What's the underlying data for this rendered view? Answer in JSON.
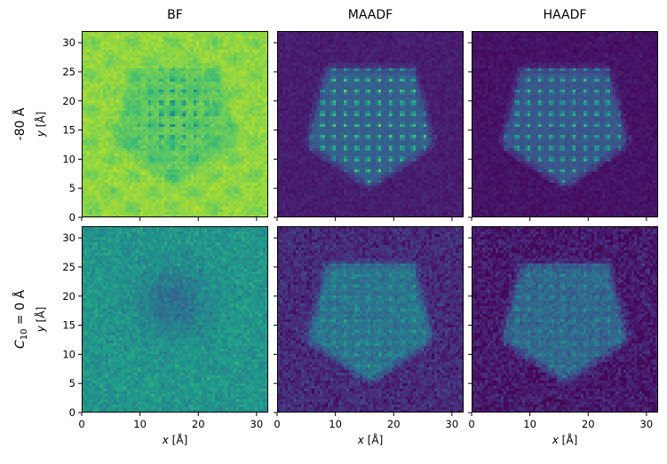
{
  "chart_data": {
    "type": "heatmap",
    "layout": "2x3 grid",
    "columns": [
      "BF",
      "MAADF",
      "HAADF"
    ],
    "rows": [
      {
        "label_prefix": "",
        "label_var": "",
        "label_sub": "",
        "label_rest": "-80 Å"
      },
      {
        "label_prefix": "",
        "label_var": "C",
        "label_sub": "10",
        "label_rest": " = 0 Å"
      }
    ],
    "xlabel_var": "x",
    "xlabel_unit": " [Å]",
    "ylabel_var": "y",
    "ylabel_unit": " [Å]",
    "xlim": [
      0,
      32
    ],
    "ylim": [
      0,
      32
    ],
    "xticks": [
      0,
      10,
      20,
      30
    ],
    "yticks": [
      0,
      5,
      10,
      15,
      20,
      25,
      30
    ],
    "colormap": "viridis",
    "panels": [
      {
        "row": 0,
        "col": 0,
        "detector": "BF",
        "defocus": "-80 Å",
        "contrast": "dark atomic columns on bright background"
      },
      {
        "row": 0,
        "col": 1,
        "detector": "MAADF",
        "defocus": "-80 Å",
        "contrast": "bright columns forming pentagonal particle"
      },
      {
        "row": 0,
        "col": 2,
        "detector": "HAADF",
        "defocus": "-80 Å",
        "contrast": "bright columns forming pentagonal particle"
      },
      {
        "row": 1,
        "col": 0,
        "detector": "BF",
        "defocus": "0 Å",
        "contrast": "weak dark blob on noisy green background"
      },
      {
        "row": 1,
        "col": 1,
        "detector": "MAADF",
        "defocus": "0 Å",
        "contrast": "noisy pentagonal particle"
      },
      {
        "row": 1,
        "col": 2,
        "detector": "HAADF",
        "defocus": "0 Å",
        "contrast": "noisy pentagonal particle"
      }
    ]
  }
}
